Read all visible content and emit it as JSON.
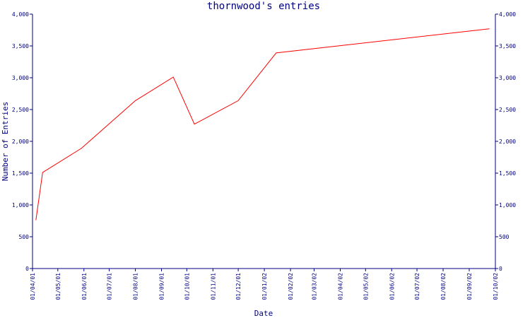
{
  "chart_data": {
    "type": "line",
    "title": "thornwood's entries",
    "xlabel": "Date",
    "ylabel": "Number of Entries",
    "ylim": [
      0,
      4000
    ],
    "y_ticks": [
      0,
      500,
      1000,
      1500,
      2000,
      2500,
      3000,
      3500,
      4000
    ],
    "y_tick_labels": [
      "0",
      "500",
      "1,000",
      "1,500",
      "2,000",
      "2,500",
      "3,000",
      "3,500",
      "4,000"
    ],
    "x_range": [
      "2001-04-01",
      "2002-10-02"
    ],
    "x_ticks": [
      "2001-04-01",
      "2001-05-01",
      "2001-06-01",
      "2001-07-01",
      "2001-08-01",
      "2001-09-01",
      "2001-10-01",
      "2001-11-01",
      "2001-12-01",
      "2002-01-01",
      "2002-02-01",
      "2002-03-01",
      "2002-04-01",
      "2002-05-01",
      "2002-06-01",
      "2002-07-01",
      "2002-08-01",
      "2002-09-01",
      "2002-10-02"
    ],
    "x_tick_labels": [
      "01/04/01",
      "01/05/01",
      "01/06/01",
      "01/07/01",
      "01/08/01",
      "01/09/01",
      "01/10/01",
      "01/11/01",
      "01/12/01",
      "01/01/02",
      "01/02/02",
      "01/03/02",
      "01/04/02",
      "01/05/02",
      "01/06/02",
      "01/07/02",
      "01/08/02",
      "01/09/02",
      "01/10/02"
    ],
    "series": [
      {
        "color": "#ff0000",
        "x": [
          "2001-04-05",
          "2001-04-13",
          "2001-05-29",
          "2001-08-01",
          "2001-09-15",
          "2001-10-10",
          "2001-12-01",
          "2002-01-15",
          "2002-09-25"
        ],
        "y": [
          760,
          1510,
          1890,
          2640,
          3010,
          2270,
          2640,
          3390,
          3770
        ]
      }
    ],
    "grid": false,
    "legend": "none",
    "colors": {
      "axis": "#000080",
      "text": "#000080",
      "line": "#ff0000"
    }
  }
}
